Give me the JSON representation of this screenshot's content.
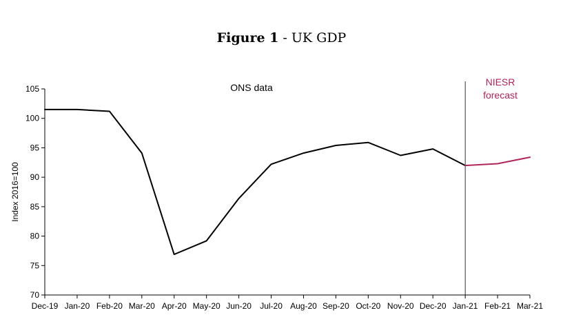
{
  "title": {
    "bold": "Figure 1",
    "separator": " - ",
    "rest": "UK GDP"
  },
  "chart_data": {
    "type": "line",
    "title": "Figure 1 - UK GDP",
    "ylabel": "Index 2016=100",
    "xlabel": "",
    "ylim": [
      70,
      105
    ],
    "yticks": [
      70,
      75,
      80,
      85,
      90,
      95,
      100,
      105
    ],
    "categories": [
      "Dec-19",
      "Jan-20",
      "Feb-20",
      "Mar-20",
      "Apr-20",
      "May-20",
      "Jun-20",
      "Jul-20",
      "Aug-20",
      "Sep-20",
      "Oct-20",
      "Nov-20",
      "Dec-20",
      "Jan-21",
      "Feb-21",
      "Mar-21"
    ],
    "series": [
      {
        "name": "ONS data",
        "color": "#000000",
        "values": [
          101.5,
          101.5,
          101.2,
          94.1,
          76.9,
          79.2,
          86.4,
          92.2,
          94.1,
          95.4,
          95.9,
          93.7,
          94.8,
          92.0,
          null,
          null
        ]
      },
      {
        "name": "NIESR forecast",
        "color": "#b0245a",
        "values": [
          null,
          null,
          null,
          null,
          null,
          null,
          null,
          null,
          null,
          null,
          null,
          null,
          null,
          92.0,
          92.3,
          93.4
        ]
      }
    ],
    "annotations": [
      {
        "text": "ONS data",
        "color": "#000000"
      },
      {
        "text_lines": [
          "NIESR",
          "forecast"
        ],
        "color": "#b0245a"
      }
    ],
    "vertical_line_at": "Jan-21"
  }
}
